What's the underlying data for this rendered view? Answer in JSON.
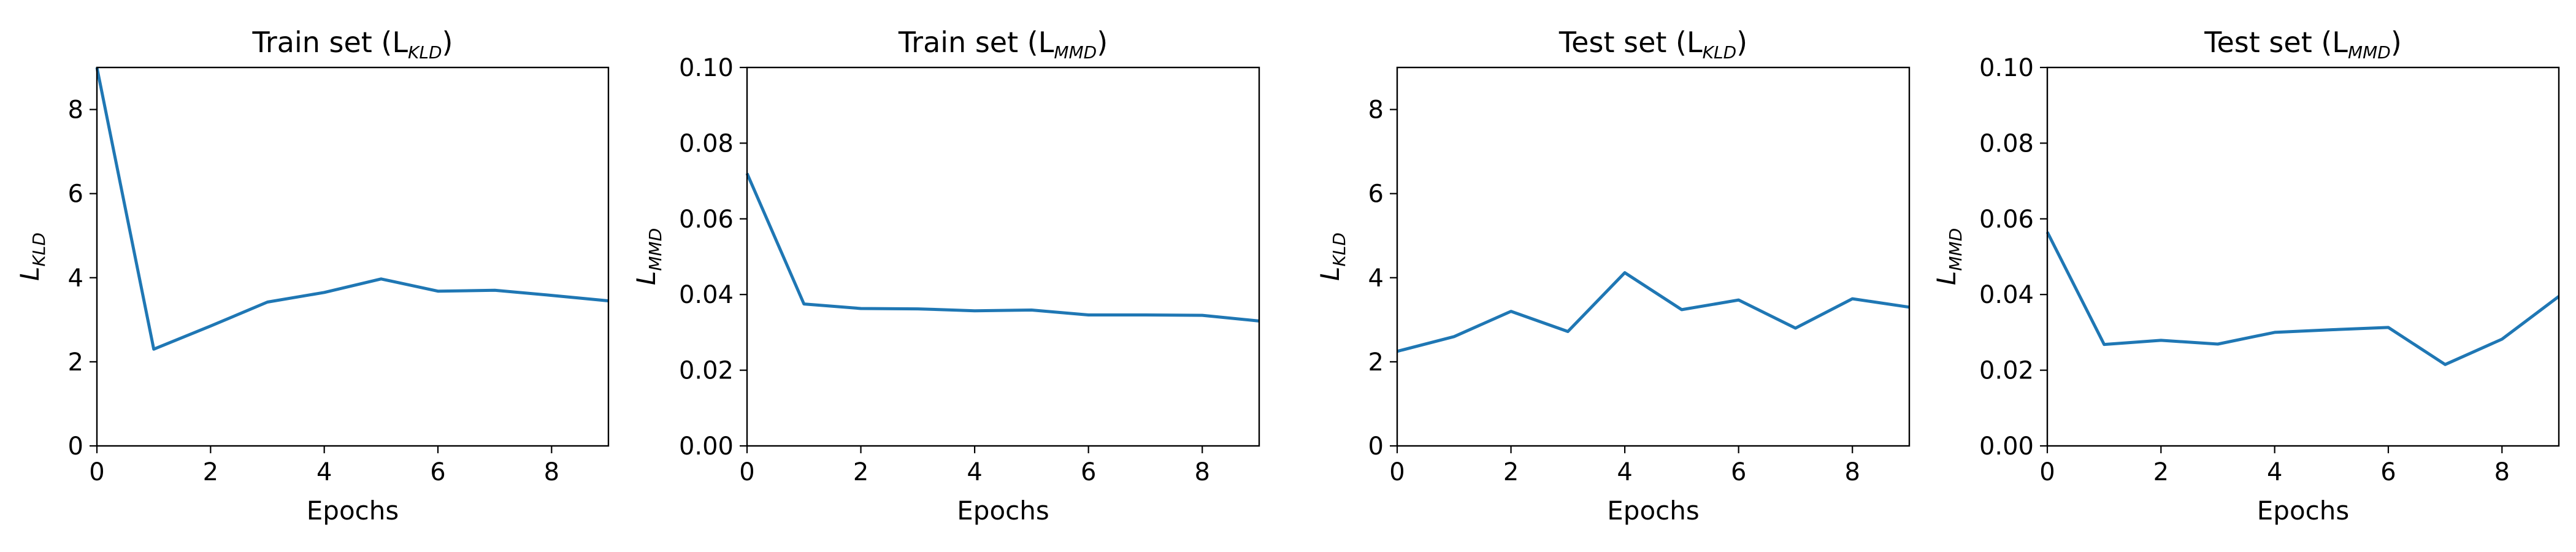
{
  "chart_data": [
    {
      "type": "line",
      "title": "Train set (L",
      "title_subscript": "KLD",
      "title_suffix": ")",
      "xlabel": "Epochs",
      "ylabel_main": "L",
      "ylabel_sub": "KLD",
      "xlim": [
        0,
        9
      ],
      "ylim": [
        0,
        9
      ],
      "xticks": [
        0,
        2,
        4,
        6,
        8
      ],
      "yticks": [
        0,
        2,
        4,
        6,
        8
      ],
      "ytick_labels": [
        "0",
        "2",
        "4",
        "6",
        "8"
      ],
      "grid": false,
      "series": [
        {
          "color": "#1f77b4",
          "x": [
            0,
            1,
            2,
            3,
            4,
            5,
            6,
            7,
            8,
            9
          ],
          "y": [
            9.0,
            2.3,
            2.85,
            3.42,
            3.65,
            3.97,
            3.68,
            3.7,
            3.58,
            3.45
          ]
        }
      ]
    },
    {
      "type": "line",
      "title": "Train set (L",
      "title_subscript": "MMD",
      "title_suffix": ")",
      "xlabel": "Epochs",
      "ylabel_main": "L",
      "ylabel_sub": "MMD",
      "xlim": [
        0,
        9
      ],
      "ylim": [
        0,
        0.1
      ],
      "xticks": [
        0,
        2,
        4,
        6,
        8
      ],
      "yticks": [
        0,
        0.02,
        0.04,
        0.06,
        0.08,
        0.1
      ],
      "ytick_labels": [
        "0.00",
        "0.02",
        "0.04",
        "0.06",
        "0.08",
        "0.10"
      ],
      "grid": false,
      "series": [
        {
          "color": "#1f77b4",
          "x": [
            0,
            1,
            2,
            3,
            4,
            5,
            6,
            7,
            8,
            9
          ],
          "y": [
            0.072,
            0.0375,
            0.0363,
            0.0362,
            0.0357,
            0.0359,
            0.0346,
            0.0346,
            0.0345,
            0.033
          ]
        }
      ]
    },
    {
      "type": "line",
      "title": "Test set (L",
      "title_subscript": "KLD",
      "title_suffix": ")",
      "xlabel": "Epochs",
      "ylabel_main": "L",
      "ylabel_sub": "KLD",
      "xlim": [
        0,
        9
      ],
      "ylim": [
        0,
        9
      ],
      "xticks": [
        0,
        2,
        4,
        6,
        8
      ],
      "yticks": [
        0,
        2,
        4,
        6,
        8
      ],
      "ytick_labels": [
        "0",
        "2",
        "4",
        "6",
        "8"
      ],
      "grid": false,
      "series": [
        {
          "color": "#1f77b4",
          "x": [
            0,
            1,
            2,
            3,
            4,
            5,
            6,
            7,
            8,
            9
          ],
          "y": [
            2.25,
            2.6,
            3.2,
            2.72,
            4.12,
            3.24,
            3.47,
            2.8,
            3.5,
            3.3
          ]
        }
      ]
    },
    {
      "type": "line",
      "title": "Test set (L",
      "title_subscript": "MMD",
      "title_suffix": ")",
      "xlabel": "Epochs",
      "ylabel_main": "L",
      "ylabel_sub": "MMD",
      "xlim": [
        0,
        9
      ],
      "ylim": [
        0,
        0.1
      ],
      "xticks": [
        0,
        2,
        4,
        6,
        8
      ],
      "yticks": [
        0,
        0.02,
        0.04,
        0.06,
        0.08,
        0.1
      ],
      "ytick_labels": [
        "0.00",
        "0.02",
        "0.04",
        "0.06",
        "0.08",
        "0.10"
      ],
      "grid": false,
      "series": [
        {
          "color": "#1f77b4",
          "x": [
            0,
            1,
            2,
            3,
            4,
            5,
            6,
            7,
            8,
            9
          ],
          "y": [
            0.0565,
            0.0268,
            0.0279,
            0.0269,
            0.03,
            0.0307,
            0.0313,
            0.0215,
            0.0282,
            0.0395
          ]
        }
      ]
    }
  ]
}
